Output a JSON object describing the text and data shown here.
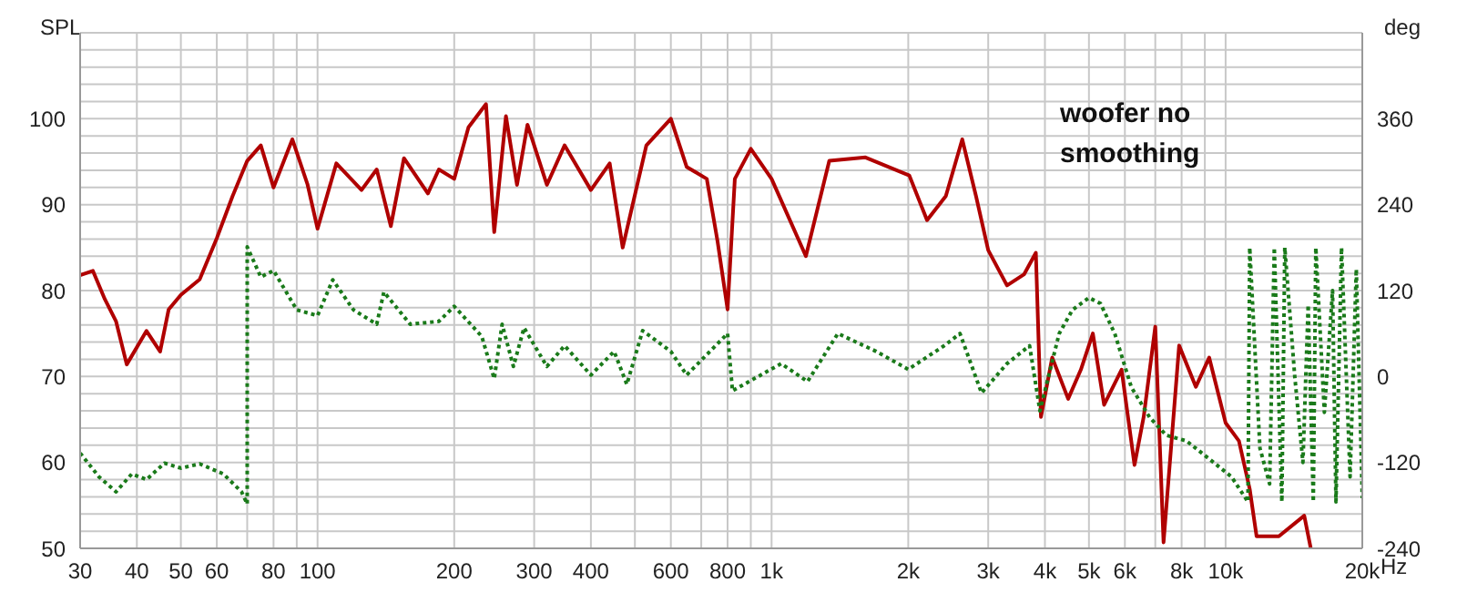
{
  "chart_data": {
    "type": "line",
    "ylabel": "SPL",
    "y2label": "deg",
    "annotations": [
      "woofer no smoothing"
    ],
    "xlim": [
      30,
      20000
    ],
    "log": "x",
    "grid": true,
    "marker": "none",
    "xticks": [
      30,
      40,
      50,
      60,
      {
        "value": 70,
        "label": null
      },
      80,
      {
        "value": 90,
        "label": null
      },
      100,
      200,
      300,
      400,
      {
        "value": 500,
        "label": null
      },
      600,
      {
        "value": 700,
        "label": null
      },
      800,
      {
        "value": 900,
        "label": null
      },
      {
        "value": 1000,
        "label": "1k"
      },
      {
        "value": 2000,
        "label": "2k"
      },
      {
        "value": 3000,
        "label": "3k"
      },
      {
        "value": 4000,
        "label": "4k"
      },
      {
        "value": 5000,
        "label": "5k"
      },
      {
        "value": 6000,
        "label": "6k"
      },
      {
        "value": 7000,
        "label": null
      },
      {
        "value": 8000,
        "label": "8k"
      },
      {
        "value": 9000,
        "label": null
      },
      {
        "value": 10000,
        "label": "10k"
      },
      {
        "value": 20000,
        "label": "20k"
      }
    ],
    "xlabel": "Hz",
    "ylim": [
      50,
      110
    ],
    "yticks": [
      50,
      {
        "value": 52,
        "label": null
      },
      {
        "value": 54,
        "label": null
      },
      {
        "value": 56,
        "label": null
      },
      {
        "value": 58,
        "label": null
      },
      60,
      {
        "value": 62,
        "label": null
      },
      {
        "value": 64,
        "label": null
      },
      {
        "value": 66,
        "label": null
      },
      {
        "value": 68,
        "label": null
      },
      70,
      {
        "value": 72,
        "label": null
      },
      {
        "value": 74,
        "label": null
      },
      {
        "value": 76,
        "label": null
      },
      {
        "value": 78,
        "label": null
      },
      80,
      {
        "value": 82,
        "label": null
      },
      {
        "value": 84,
        "label": null
      },
      {
        "value": 86,
        "label": null
      },
      {
        "value": 88,
        "label": null
      },
      90,
      {
        "value": 92,
        "label": null
      },
      {
        "value": 94,
        "label": null
      },
      {
        "value": 96,
        "label": null
      },
      {
        "value": 98,
        "label": null
      },
      100,
      {
        "value": 102,
        "label": null
      },
      {
        "value": 104,
        "label": null
      },
      {
        "value": 106,
        "label": null
      },
      {
        "value": 108,
        "label": null
      },
      {
        "value": 110,
        "label": null
      }
    ],
    "y2lim": [
      -240,
      480
    ],
    "y2ticks": [
      -240,
      -120,
      0,
      120,
      240,
      360
    ],
    "series": [
      {
        "color": "#b00000",
        "line_style": "solid",
        "x": [
          30,
          32,
          34,
          36,
          38,
          42,
          45,
          47,
          50,
          55,
          60,
          65,
          70,
          75,
          80,
          88,
          95,
          100,
          110,
          125,
          135,
          145,
          155,
          175,
          185,
          200,
          215,
          235,
          245,
          260,
          275,
          290,
          320,
          350,
          400,
          440,
          470,
          530,
          600,
          650,
          720,
          760,
          800,
          830,
          900,
          1000,
          1190,
          1340,
          1610,
          2010,
          2200,
          2420,
          2630,
          2820,
          3000,
          3300,
          3600,
          3820,
          3920,
          4150,
          4500,
          4800,
          5100,
          5400,
          5900,
          6300,
          6600,
          7000,
          7300,
          7900,
          8600,
          9200,
          10000,
          10700,
          11300,
          11700,
          13100,
          14900,
          15400
        ],
        "values": [
          81.8,
          82.3,
          79,
          76.4,
          71.4,
          75.3,
          72.9,
          77.8,
          79.5,
          81.3,
          86.1,
          91,
          95.1,
          96.9,
          92,
          97.6,
          92.4,
          87.2,
          94.8,
          91.7,
          94.1,
          87.5,
          95.4,
          91.3,
          94.1,
          93,
          99,
          101.7,
          86.8,
          100.3,
          92.3,
          99.3,
          92.3,
          96.9,
          91.7,
          94.8,
          85,
          96.9,
          100,
          94.4,
          93,
          85.8,
          77.8,
          93,
          96.5,
          93,
          84,
          95.1,
          95.5,
          93.4,
          88.2,
          91,
          97.6,
          91,
          84.7,
          80.6,
          81.9,
          84.4,
          65.3,
          72.2,
          67.4,
          70.8,
          75,
          66.7,
          70.8,
          59.7,
          65.3,
          75.8,
          50.7,
          73.6,
          68.8,
          72.2,
          64.6,
          62.5,
          56.9,
          51.4,
          51.4,
          53.8,
          50
        ]
      },
      {
        "color": "#1a7a1a",
        "line_style": "dotted",
        "axis": "y2",
        "x": [
          30,
          33,
          36,
          39,
          42,
          46,
          50,
          55,
          62,
          68,
          70,
          70,
          75,
          80,
          90,
          100,
          108,
          120,
          135,
          140,
          160,
          185,
          200,
          230,
          245,
          255,
          270,
          285,
          320,
          350,
          400,
          450,
          480,
          520,
          600,
          650,
          800,
          820,
          1050,
          1200,
          1400,
          1700,
          2000,
          2400,
          2600,
          2900,
          3300,
          3700,
          3900,
          4300,
          4600,
          5000,
          5300,
          5700,
          6200,
          6800,
          7400,
          8200,
          9200,
          10300,
          11200,
          11300,
          11900,
          12500,
          12800,
          13300,
          13500,
          14200,
          14800,
          15200,
          15600,
          15800,
          16500,
          17200,
          17500,
          18000,
          18800,
          19400,
          20000
        ],
        "values": [
          -107,
          -140,
          -161,
          -136,
          -144,
          -121,
          -128,
          -122,
          -136,
          -161,
          -178,
          181,
          139,
          148,
          93,
          85,
          135,
          93,
          73,
          118,
          73,
          77,
          98,
          56,
          -3,
          73,
          14,
          68,
          14,
          43,
          2,
          35,
          -11,
          64,
          35,
          2,
          60,
          -20,
          18,
          -7,
          60,
          35,
          10,
          43,
          60,
          -23,
          18,
          43,
          -48,
          60,
          93,
          110,
          102,
          60,
          -15,
          -57,
          -82,
          -90,
          -115,
          -140,
          -175,
          180,
          -100,
          -150,
          180,
          -175,
          180,
          0,
          -120,
          100,
          -175,
          180,
          -50,
          120,
          -175,
          180,
          -140,
          150,
          -170
        ]
      }
    ]
  }
}
